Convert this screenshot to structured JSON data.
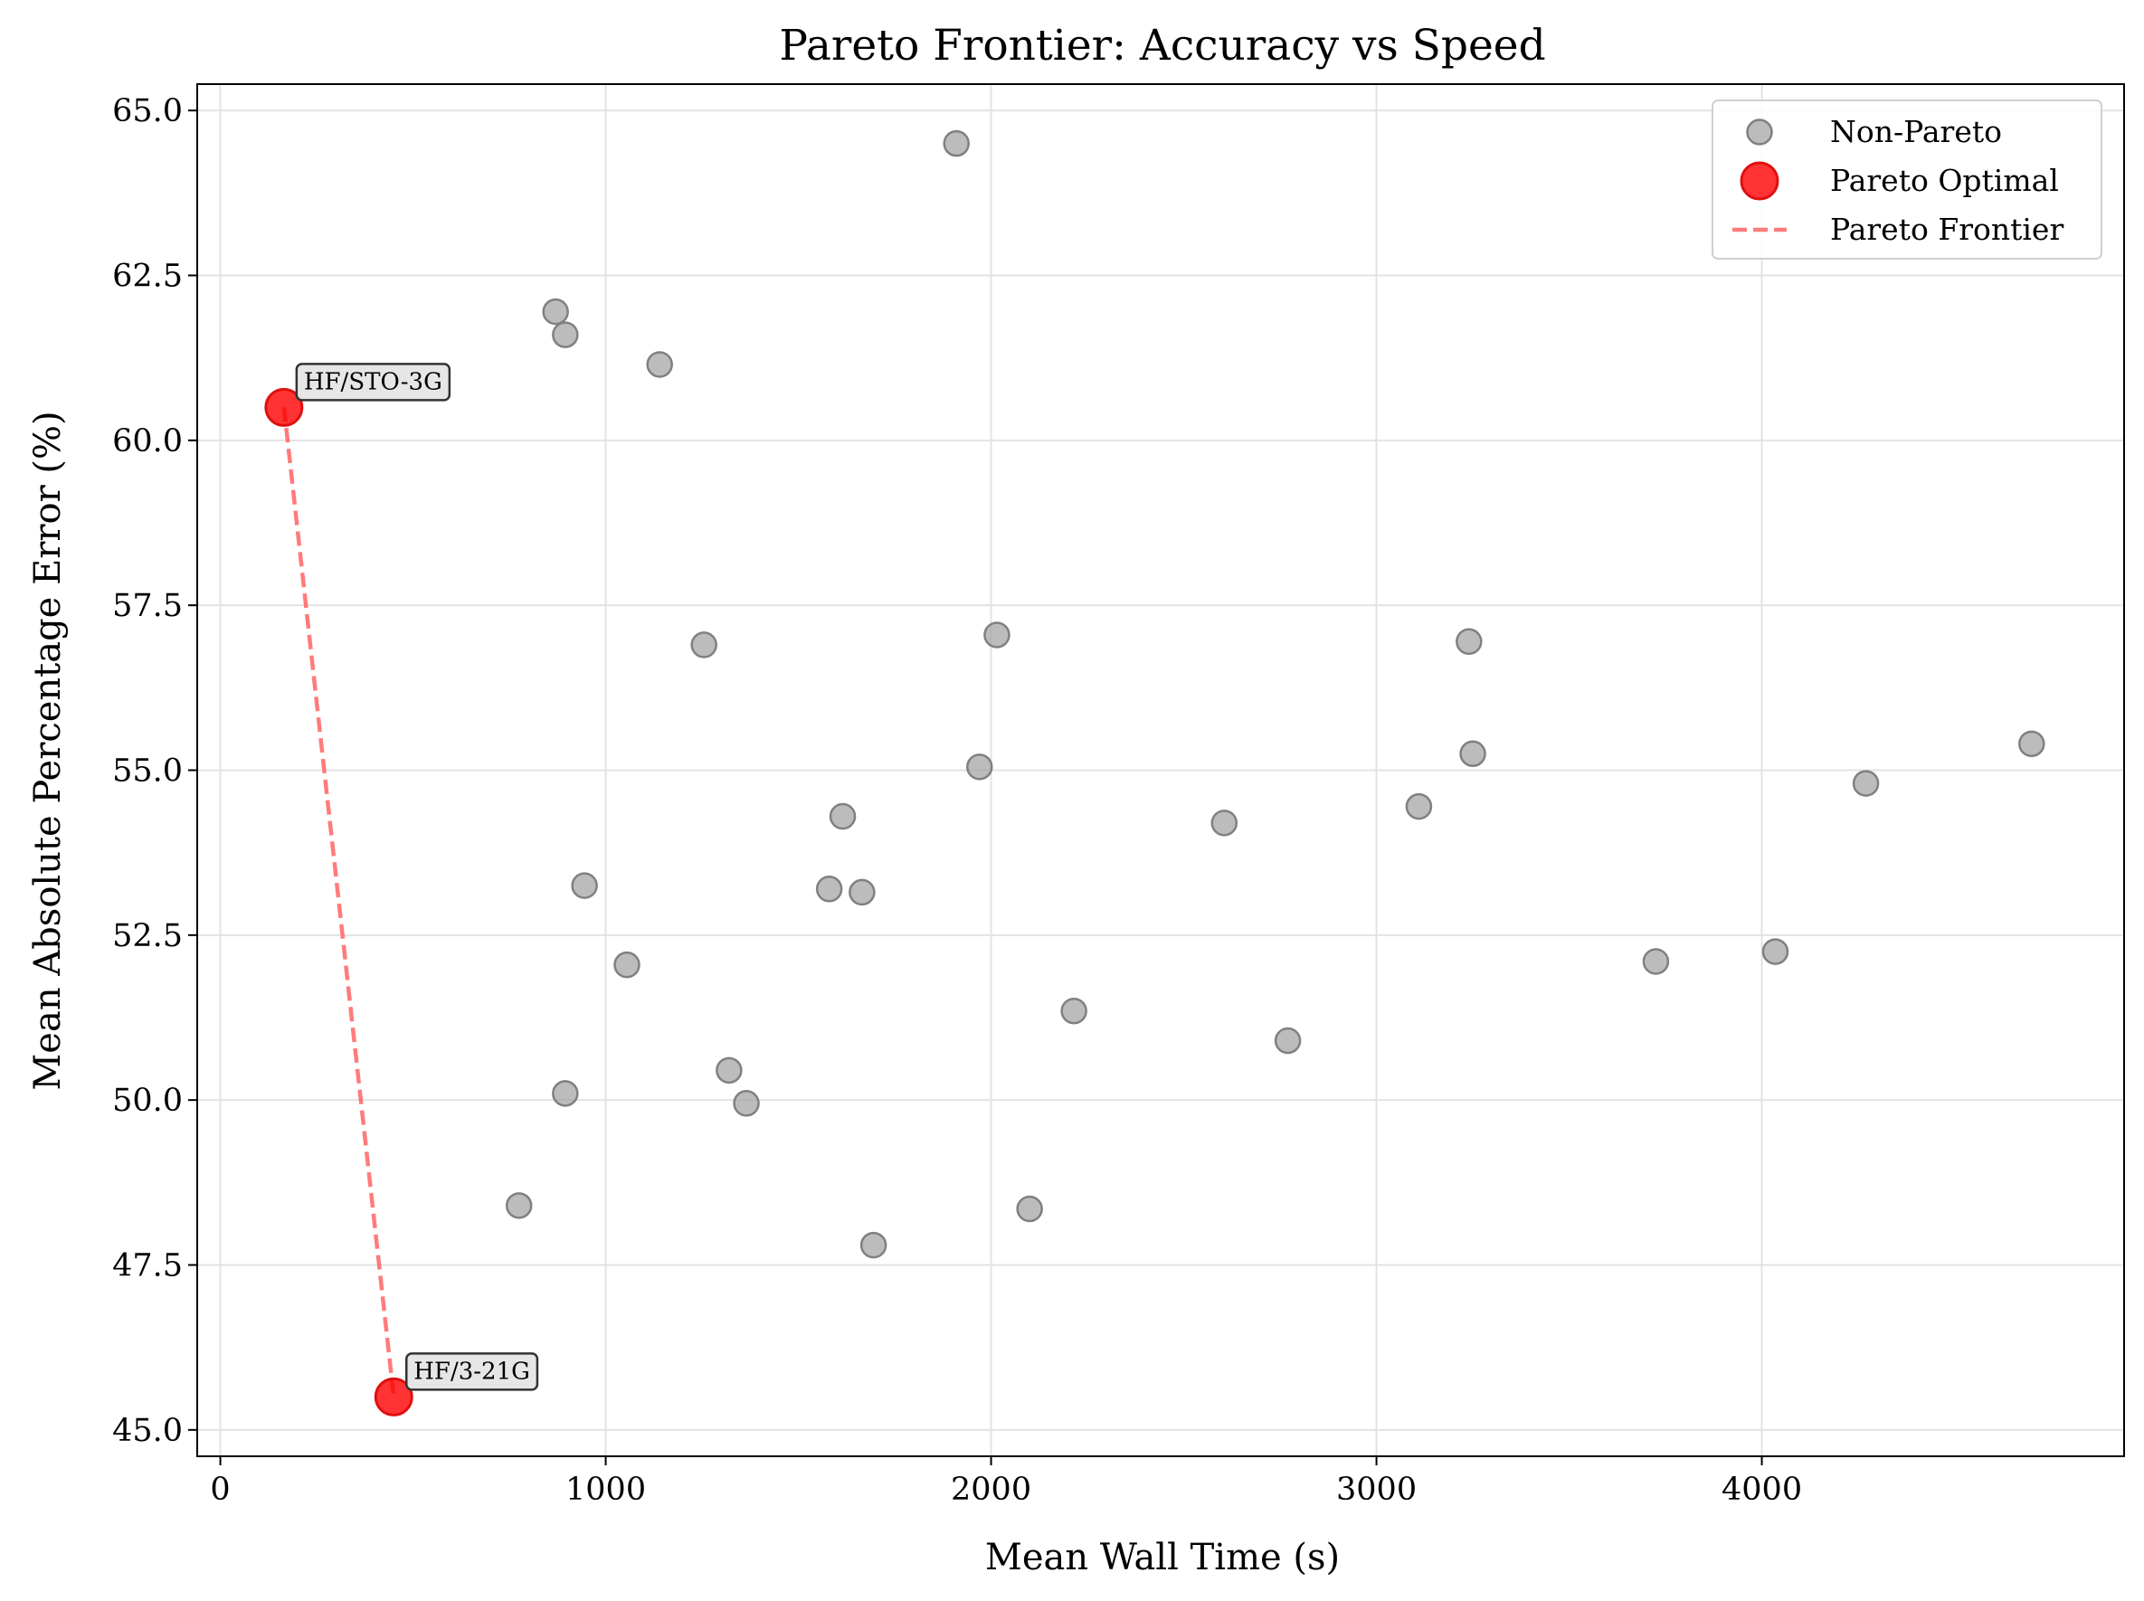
{
  "chart_data": {
    "type": "scatter",
    "title": "Pareto Frontier: Accuracy vs Speed",
    "xlabel": "Mean Wall Time (s)",
    "ylabel": "Mean Absolute Percentage Error (%)",
    "xlim": [
      -60,
      4940
    ],
    "ylim": [
      44.6,
      65.4
    ],
    "xticks": [
      0,
      1000,
      2000,
      3000,
      4000
    ],
    "xtick_labels": [
      "0",
      "1000",
      "2000",
      "3000",
      "4000"
    ],
    "yticks": [
      45.0,
      47.5,
      50.0,
      52.5,
      55.0,
      57.5,
      60.0,
      62.5,
      65.0
    ],
    "ytick_labels": [
      "45.0",
      "47.5",
      "50.0",
      "52.5",
      "55.0",
      "57.5",
      "60.0",
      "62.5",
      "65.0"
    ],
    "grid": true,
    "legend_position": "top-right",
    "series": [
      {
        "name": "Non-Pareto",
        "color": "#a0a0a0",
        "marker": "circle",
        "points": [
          {
            "x": 1910,
            "y": 64.5
          },
          {
            "x": 870,
            "y": 61.95
          },
          {
            "x": 895,
            "y": 61.6
          },
          {
            "x": 1140,
            "y": 61.15
          },
          {
            "x": 1255,
            "y": 56.9
          },
          {
            "x": 2015,
            "y": 57.05
          },
          {
            "x": 3240,
            "y": 56.95
          },
          {
            "x": 3250,
            "y": 55.25
          },
          {
            "x": 1970,
            "y": 55.05
          },
          {
            "x": 4700,
            "y": 55.4
          },
          {
            "x": 1615,
            "y": 54.3
          },
          {
            "x": 2605,
            "y": 54.2
          },
          {
            "x": 3110,
            "y": 54.45
          },
          {
            "x": 4270,
            "y": 54.8
          },
          {
            "x": 945,
            "y": 53.25
          },
          {
            "x": 1580,
            "y": 53.2
          },
          {
            "x": 1665,
            "y": 53.15
          },
          {
            "x": 1055,
            "y": 52.05
          },
          {
            "x": 3725,
            "y": 52.1
          },
          {
            "x": 4035,
            "y": 52.25
          },
          {
            "x": 2215,
            "y": 51.35
          },
          {
            "x": 2770,
            "y": 50.9
          },
          {
            "x": 1320,
            "y": 50.45
          },
          {
            "x": 895,
            "y": 50.1
          },
          {
            "x": 1365,
            "y": 49.95
          },
          {
            "x": 775,
            "y": 48.4
          },
          {
            "x": 2100,
            "y": 48.35
          },
          {
            "x": 1695,
            "y": 47.8
          }
        ]
      },
      {
        "name": "Pareto Optimal",
        "color": "#ff0000",
        "marker": "circle",
        "points": [
          {
            "x": 165,
            "y": 60.5,
            "label": "HF/STO-3G"
          },
          {
            "x": 450,
            "y": 45.5,
            "label": "HF/3-21G"
          }
        ]
      },
      {
        "name": "Pareto Frontier",
        "color": "#ff6464",
        "line_style": "dashed",
        "points": [
          {
            "x": 165,
            "y": 60.5
          },
          {
            "x": 450,
            "y": 45.5
          }
        ]
      }
    ]
  }
}
